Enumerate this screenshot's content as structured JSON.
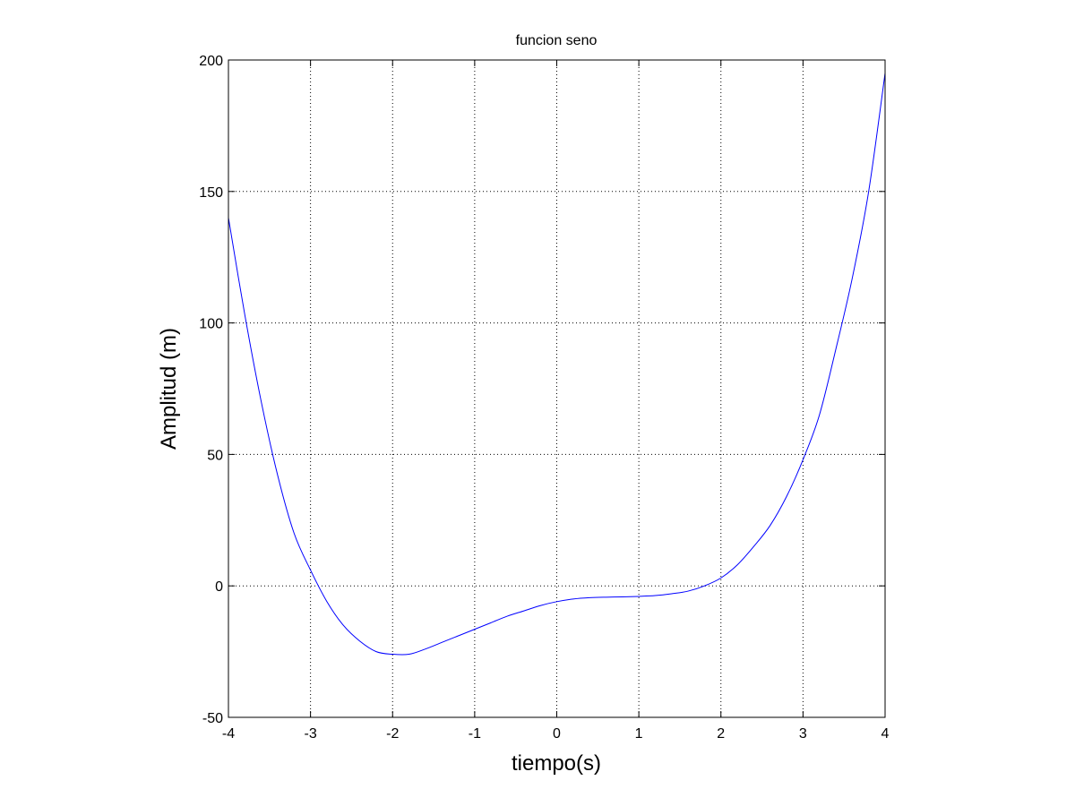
{
  "chart_data": {
    "type": "line",
    "title": "funcion seno",
    "xlabel": "tiempo(s)",
    "ylabel": "Amplitud (m)",
    "xlim": [
      -4,
      4
    ],
    "ylim": [
      -50,
      200
    ],
    "xticks": [
      -4,
      -3,
      -2,
      -1,
      0,
      1,
      2,
      3,
      4
    ],
    "yticks": [
      -50,
      0,
      50,
      100,
      150,
      200
    ],
    "grid": true,
    "grid_style": "dotted",
    "series": [
      {
        "color": "#0000ff",
        "x": [
          -4.0,
          -3.8,
          -3.6,
          -3.4,
          -3.2,
          -3.0,
          -2.8,
          -2.6,
          -2.4,
          -2.2,
          -2.0,
          -1.8,
          -1.6,
          -1.4,
          -1.2,
          -1.0,
          -0.8,
          -0.6,
          -0.4,
          -0.2,
          0.0,
          0.2,
          0.4,
          0.6,
          0.8,
          1.0,
          1.2,
          1.4,
          1.6,
          1.8,
          2.0,
          2.2,
          2.4,
          2.6,
          2.8,
          3.0,
          3.2,
          3.4,
          3.6,
          3.8,
          4.0
        ],
        "y": [
          140,
          103,
          70,
          42,
          20,
          6,
          -6,
          -15,
          -21,
          -25,
          -26,
          -26,
          -24,
          -21.5,
          -19,
          -16.5,
          -14,
          -11.5,
          -9.5,
          -7.5,
          -6,
          -5,
          -4.5,
          -4.3,
          -4.2,
          -4,
          -3.7,
          -3,
          -2,
          0,
          3,
          8,
          15,
          23,
          34,
          48,
          65,
          90,
          117,
          150,
          195
        ]
      }
    ]
  }
}
